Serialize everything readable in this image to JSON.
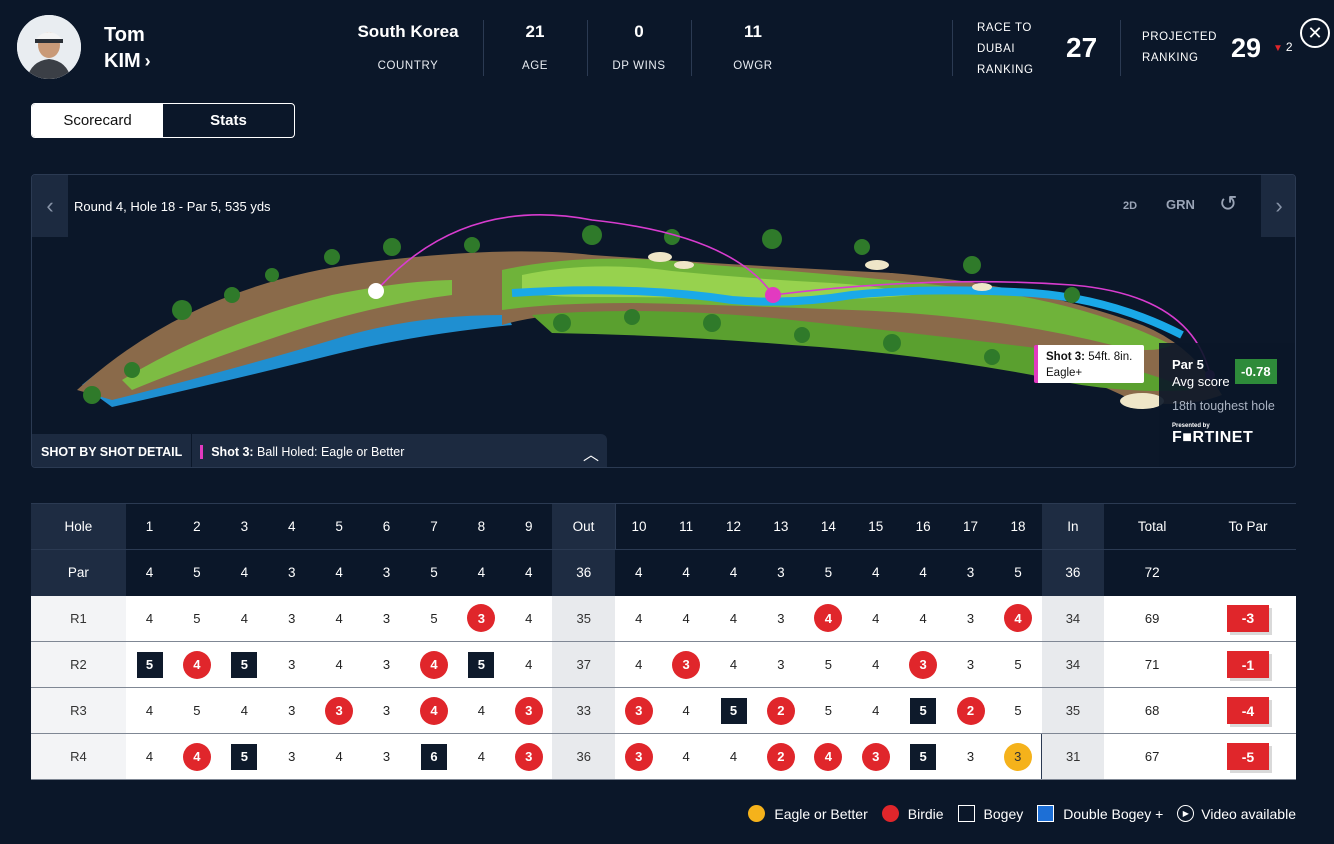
{
  "player": {
    "first_name": "Tom",
    "last_name": "KIM",
    "chevron": "›",
    "avatar": "player-avatar"
  },
  "stats": [
    {
      "value": "South Korea",
      "label": "COUNTRY"
    },
    {
      "value": "21",
      "label": "AGE"
    },
    {
      "value": "0",
      "label": "DP WINS"
    },
    {
      "value": "11",
      "label": "OWGR"
    }
  ],
  "race": {
    "label_line1": "RACE TO",
    "label_line2": "DUBAI",
    "label_line3": "RANKING",
    "value": "27"
  },
  "projected": {
    "label_line1": "PROJECTED",
    "label_line2": "RANKING",
    "value": "29",
    "delta": "2",
    "delta_direction": "down"
  },
  "close_icon": "✕",
  "tabs": {
    "scorecard": "Scorecard",
    "stats": "Stats",
    "active": "scorecard"
  },
  "map": {
    "title": "Round 4, Hole 18 - Par 5, 535 yds",
    "prev": "‹",
    "next": "›",
    "controls": {
      "view_2d": "2D",
      "green": "GRN",
      "reset_icon": "↺"
    },
    "tooltip": {
      "shot": "Shot 3:",
      "distance": "54ft. 8in.",
      "result": "Eagle+"
    },
    "hole_info": {
      "par": "Par 5",
      "avg_label": "Avg score",
      "avg_value": "-0.78",
      "toughness": "18th toughest hole",
      "presented_by": "Presented by",
      "sponsor": "F■RTINET"
    },
    "shot_bar": {
      "label": "SHOT BY SHOT DETAIL",
      "shot": "Shot 3:",
      "detail": " Ball Holed: Eagle or Better",
      "caret": "︿"
    }
  },
  "colors": {
    "birdie": "#e0262b",
    "eagle": "#f5b21b",
    "bogey": "#0e1a2b",
    "double_bogey": "#1d6fd6",
    "avg_score_bg": "#2e8b3a",
    "shot_accent": "#e23ac0"
  },
  "scorecard": {
    "headers": {
      "hole": "Hole",
      "par": "Par",
      "out": "Out",
      "in": "In",
      "total": "Total",
      "to_par": "To Par"
    },
    "holes": [
      "1",
      "2",
      "3",
      "4",
      "5",
      "6",
      "7",
      "8",
      "9",
      "10",
      "11",
      "12",
      "13",
      "14",
      "15",
      "16",
      "17",
      "18"
    ],
    "par": [
      "4",
      "5",
      "4",
      "3",
      "4",
      "3",
      "5",
      "4",
      "4",
      "4",
      "4",
      "4",
      "3",
      "5",
      "4",
      "4",
      "3",
      "5"
    ],
    "par_out": "36",
    "par_in": "36",
    "par_total": "72",
    "rounds": [
      {
        "label": "R1",
        "scores": [
          "4",
          "5",
          "4",
          "3",
          "4",
          "3",
          "5",
          "3",
          "4",
          "4",
          "4",
          "4",
          "3",
          "4",
          "4",
          "4",
          "3",
          "4"
        ],
        "types": [
          "p",
          "p",
          "p",
          "p",
          "p",
          "p",
          "p",
          "b",
          "p",
          "p",
          "p",
          "p",
          "p",
          "b",
          "p",
          "p",
          "p",
          "b"
        ],
        "out": "35",
        "in": "34",
        "total": "69",
        "to_par": "-3"
      },
      {
        "label": "R2",
        "scores": [
          "5",
          "4",
          "5",
          "3",
          "4",
          "3",
          "4",
          "5",
          "4",
          "4",
          "3",
          "4",
          "3",
          "5",
          "4",
          "3",
          "3",
          "5"
        ],
        "types": [
          "g",
          "b",
          "g",
          "p",
          "p",
          "p",
          "b",
          "g",
          "p",
          "p",
          "b",
          "p",
          "p",
          "p",
          "p",
          "b",
          "p",
          "p"
        ],
        "out": "37",
        "in": "34",
        "total": "71",
        "to_par": "-1"
      },
      {
        "label": "R3",
        "scores": [
          "4",
          "5",
          "4",
          "3",
          "3",
          "3",
          "4",
          "4",
          "3",
          "3",
          "4",
          "5",
          "2",
          "5",
          "4",
          "5",
          "2",
          "5"
        ],
        "types": [
          "p",
          "p",
          "p",
          "p",
          "b",
          "p",
          "b",
          "p",
          "b",
          "b",
          "p",
          "g",
          "b",
          "p",
          "p",
          "g",
          "b",
          "p"
        ],
        "out": "33",
        "in": "35",
        "total": "68",
        "to_par": "-4"
      },
      {
        "label": "R4",
        "scores": [
          "4",
          "4",
          "5",
          "3",
          "4",
          "3",
          "6",
          "4",
          "3",
          "3",
          "4",
          "4",
          "2",
          "4",
          "3",
          "5",
          "3",
          "3"
        ],
        "types": [
          "p",
          "b",
          "g",
          "p",
          "p",
          "p",
          "g",
          "p",
          "b",
          "b",
          "p",
          "p",
          "b",
          "b",
          "b",
          "g",
          "p",
          "e"
        ],
        "out": "36",
        "in": "31",
        "total": "67",
        "to_par": "-5"
      }
    ]
  },
  "legend": [
    {
      "label": "Eagle or Better",
      "marker": "eagle-mk"
    },
    {
      "label": "Birdie",
      "marker": "birdie-mk"
    },
    {
      "label": "Bogey",
      "marker": "bogey-mk"
    },
    {
      "label": "Double Bogey +",
      "marker": "dbl-mk"
    },
    {
      "label": "Video available",
      "marker": "video-mk"
    }
  ]
}
